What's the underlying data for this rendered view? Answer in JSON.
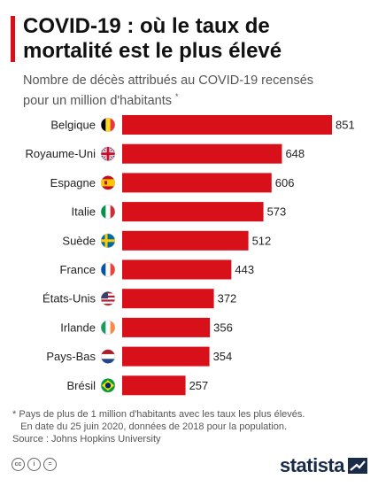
{
  "header": {
    "title_line1": "COVID-19 : où le taux de",
    "title_line2": "mortalité est le plus élevé",
    "subtitle_line1": "Nombre de décès attribués au COVID-19 recensés",
    "subtitle_line2": "pour un million d'habitants",
    "subtitle_mark": "*"
  },
  "chart_data": {
    "type": "bar",
    "orientation": "horizontal",
    "categories": [
      "Belgique",
      "Royaume-Uni",
      "Espagne",
      "Italie",
      "Suède",
      "France",
      "États-Unis",
      "Irlande",
      "Pays-Bas",
      "Brésil"
    ],
    "values": [
      851,
      648,
      606,
      573,
      512,
      443,
      372,
      356,
      354,
      257
    ],
    "bar_color": "#d7101a",
    "flags": [
      "belgium-flag",
      "uk-flag",
      "spain-flag",
      "italy-flag",
      "sweden-flag",
      "france-flag",
      "usa-flag",
      "ireland-flag",
      "netherlands-flag",
      "brazil-flag"
    ]
  },
  "footer": {
    "note_line1": "* Pays de plus de 1 million d'habitants avec les taux les plus élevés.",
    "note_line2": "   En date du 25 juin 2020, données de 2018 pour la population.",
    "source": "Source : Johns Hopkins University",
    "logo": "statista"
  }
}
